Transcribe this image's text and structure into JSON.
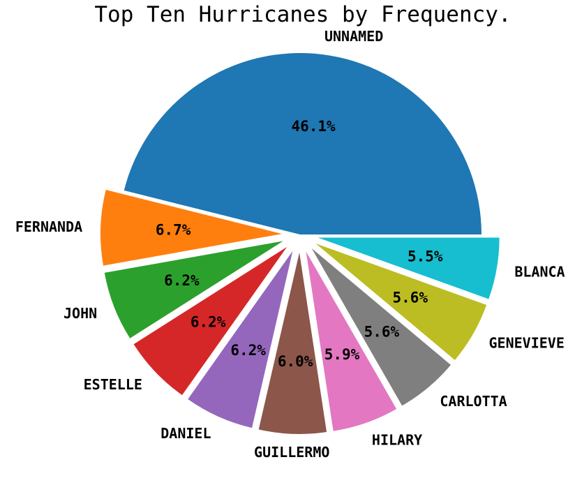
{
  "chart_data": {
    "type": "pie",
    "title": "Top Ten Hurricanes by Frequency.",
    "start_angle_deg": 0,
    "direction": "counterclockwise",
    "slices": [
      {
        "label": "UNNAMED",
        "percent": 46.1,
        "percent_label": "46.1%",
        "color": "#1f77b4",
        "exploded": false
      },
      {
        "label": "FERNANDA",
        "percent": 6.7,
        "percent_label": "6.7%",
        "color": "#ff7f0e",
        "exploded": true
      },
      {
        "label": "JOHN",
        "percent": 6.2,
        "percent_label": "6.2%",
        "color": "#2ca02c",
        "exploded": true
      },
      {
        "label": "ESTELLE",
        "percent": 6.2,
        "percent_label": "6.2%",
        "color": "#d62728",
        "exploded": true
      },
      {
        "label": "DANIEL",
        "percent": 6.2,
        "percent_label": "6.2%",
        "color": "#9467bd",
        "exploded": true
      },
      {
        "label": "GUILLERMO",
        "percent": 6.0,
        "percent_label": "6.0%",
        "color": "#8c564b",
        "exploded": true
      },
      {
        "label": "HILARY",
        "percent": 5.9,
        "percent_label": "5.9%",
        "color": "#e377c2",
        "exploded": true
      },
      {
        "label": "CARLOTTA",
        "percent": 5.6,
        "percent_label": "5.6%",
        "color": "#7f7f7f",
        "exploded": true
      },
      {
        "label": "GENEVIEVE",
        "percent": 5.6,
        "percent_label": "5.6%",
        "color": "#bcbd22",
        "exploded": true
      },
      {
        "label": "BLANCA",
        "percent": 5.5,
        "percent_label": "5.5%",
        "color": "#17becf",
        "exploded": true
      }
    ]
  }
}
